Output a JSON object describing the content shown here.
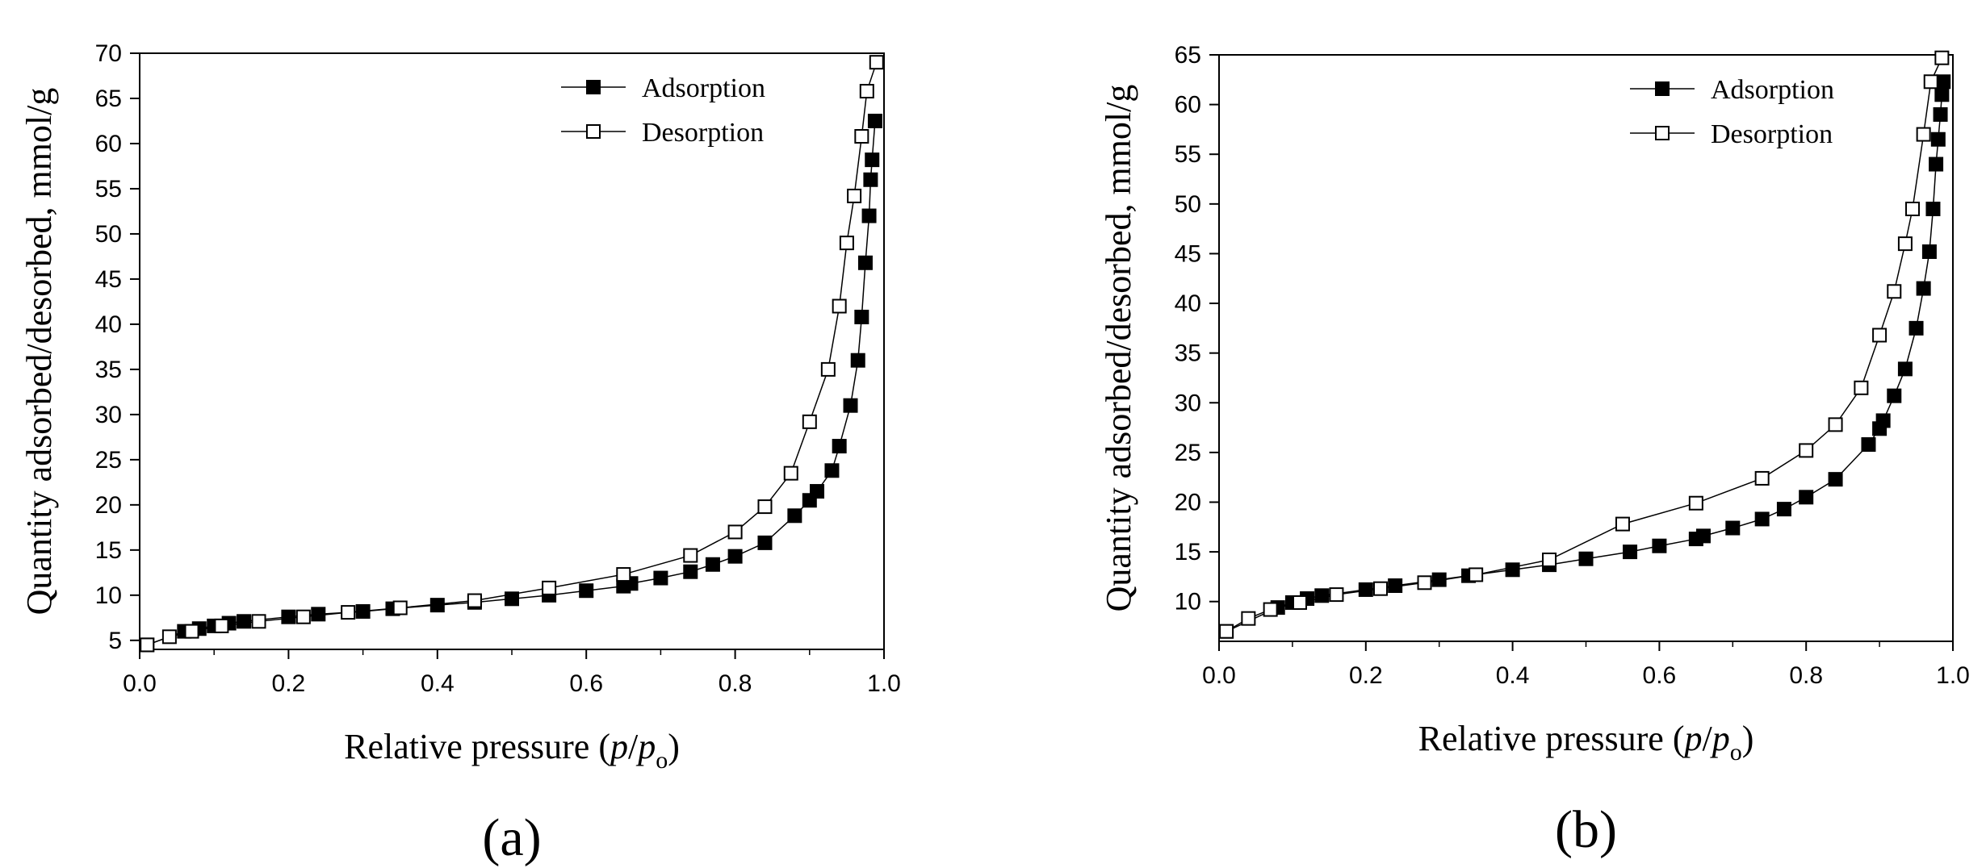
{
  "chart_data": [
    {
      "type": "scatter",
      "panel_label": "(a)",
      "xlabel_main": "Relative pressure (",
      "xlabel_p": "p",
      "xlabel_slash": "/",
      "xlabel_p2": "p",
      "xlabel_sub": "o",
      "xlabel_close": ")",
      "ylabel": "Quantity adsorbed/desorbed, mmol/g",
      "xlim": [
        0.0,
        1.0
      ],
      "ylim": [
        4,
        70
      ],
      "xticks": [
        "0.0",
        "0.2",
        "0.4",
        "0.6",
        "0.8",
        "1.0"
      ],
      "yticks": [
        "5",
        "10",
        "15",
        "20",
        "25",
        "30",
        "35",
        "40",
        "45",
        "50",
        "55",
        "60",
        "65",
        "70"
      ],
      "legend_position": "top-right",
      "series": [
        {
          "name": "Adsorption",
          "marker": "filled-square",
          "points": [
            [
              0.01,
              4.5
            ],
            [
              0.06,
              6.0
            ],
            [
              0.08,
              6.3
            ],
            [
              0.1,
              6.6
            ],
            [
              0.12,
              6.9
            ],
            [
              0.14,
              7.1
            ],
            [
              0.2,
              7.6
            ],
            [
              0.24,
              7.9
            ],
            [
              0.3,
              8.2
            ],
            [
              0.34,
              8.5
            ],
            [
              0.4,
              8.9
            ],
            [
              0.45,
              9.2
            ],
            [
              0.5,
              9.6
            ],
            [
              0.55,
              10.0
            ],
            [
              0.6,
              10.5
            ],
            [
              0.65,
              11.0
            ],
            [
              0.66,
              11.3
            ],
            [
              0.7,
              11.9
            ],
            [
              0.74,
              12.6
            ],
            [
              0.77,
              13.4
            ],
            [
              0.8,
              14.3
            ],
            [
              0.84,
              15.8
            ],
            [
              0.88,
              18.8
            ],
            [
              0.9,
              20.5
            ],
            [
              0.91,
              21.5
            ],
            [
              0.93,
              23.8
            ],
            [
              0.94,
              26.5
            ],
            [
              0.955,
              31.0
            ],
            [
              0.965,
              36.0
            ],
            [
              0.97,
              40.8
            ],
            [
              0.975,
              46.8
            ],
            [
              0.98,
              52.0
            ],
            [
              0.982,
              56.0
            ],
            [
              0.984,
              58.2
            ],
            [
              0.988,
              62.5
            ]
          ]
        },
        {
          "name": "Desorption",
          "marker": "open-square",
          "points": [
            [
              0.01,
              4.5
            ],
            [
              0.04,
              5.4
            ],
            [
              0.07,
              6.0
            ],
            [
              0.11,
              6.6
            ],
            [
              0.16,
              7.1
            ],
            [
              0.22,
              7.6
            ],
            [
              0.28,
              8.1
            ],
            [
              0.35,
              8.6
            ],
            [
              0.45,
              9.4
            ],
            [
              0.55,
              10.8
            ],
            [
              0.65,
              12.3
            ],
            [
              0.74,
              14.4
            ],
            [
              0.8,
              17.0
            ],
            [
              0.84,
              19.8
            ],
            [
              0.875,
              23.5
            ],
            [
              0.9,
              29.2
            ],
            [
              0.925,
              35.0
            ],
            [
              0.94,
              42.0
            ],
            [
              0.95,
              49.0
            ],
            [
              0.96,
              54.2
            ],
            [
              0.97,
              60.8
            ],
            [
              0.977,
              65.8
            ],
            [
              0.99,
              69.0
            ]
          ]
        }
      ]
    },
    {
      "type": "scatter",
      "panel_label": "(b)",
      "xlabel_main": "Relative pressure (",
      "xlabel_p": "p",
      "xlabel_slash": "/",
      "xlabel_p2": "p",
      "xlabel_sub": "o",
      "xlabel_close": ")",
      "ylabel": "Quantity adsorbed/desorbed, mmol/g",
      "xlim": [
        0.0,
        1.0
      ],
      "ylim": [
        6,
        65
      ],
      "xticks": [
        "0.0",
        "0.2",
        "0.4",
        "0.6",
        "0.8",
        "1.0"
      ],
      "yticks": [
        "10",
        "15",
        "20",
        "25",
        "30",
        "35",
        "40",
        "45",
        "50",
        "55",
        "60",
        "65"
      ],
      "legend_position": "top-right",
      "series": [
        {
          "name": "Adsorption",
          "marker": "filled-square",
          "points": [
            [
              0.01,
              7.0
            ],
            [
              0.08,
              9.4
            ],
            [
              0.1,
              9.9
            ],
            [
              0.12,
              10.3
            ],
            [
              0.14,
              10.6
            ],
            [
              0.2,
              11.2
            ],
            [
              0.24,
              11.6
            ],
            [
              0.3,
              12.2
            ],
            [
              0.34,
              12.6
            ],
            [
              0.4,
              13.2
            ],
            [
              0.45,
              13.7
            ],
            [
              0.5,
              14.3
            ],
            [
              0.56,
              15.0
            ],
            [
              0.6,
              15.6
            ],
            [
              0.65,
              16.3
            ],
            [
              0.66,
              16.6
            ],
            [
              0.7,
              17.4
            ],
            [
              0.74,
              18.3
            ],
            [
              0.77,
              19.3
            ],
            [
              0.8,
              20.5
            ],
            [
              0.84,
              22.3
            ],
            [
              0.885,
              25.8
            ],
            [
              0.9,
              27.4
            ],
            [
              0.905,
              28.2
            ],
            [
              0.92,
              30.7
            ],
            [
              0.935,
              33.4
            ],
            [
              0.95,
              37.5
            ],
            [
              0.96,
              41.5
            ],
            [
              0.968,
              45.2
            ],
            [
              0.973,
              49.5
            ],
            [
              0.977,
              54.0
            ],
            [
              0.98,
              56.5
            ],
            [
              0.983,
              59.0
            ],
            [
              0.985,
              61.0
            ],
            [
              0.987,
              62.3
            ]
          ]
        },
        {
          "name": "Desorption",
          "marker": "open-square",
          "points": [
            [
              0.01,
              7.0
            ],
            [
              0.04,
              8.3
            ],
            [
              0.07,
              9.2
            ],
            [
              0.11,
              9.9
            ],
            [
              0.16,
              10.7
            ],
            [
              0.22,
              11.3
            ],
            [
              0.28,
              11.9
            ],
            [
              0.35,
              12.7
            ],
            [
              0.45,
              14.2
            ],
            [
              0.55,
              17.8
            ],
            [
              0.65,
              19.9
            ],
            [
              0.74,
              22.4
            ],
            [
              0.8,
              25.2
            ],
            [
              0.84,
              27.8
            ],
            [
              0.875,
              31.5
            ],
            [
              0.9,
              36.8
            ],
            [
              0.92,
              41.2
            ],
            [
              0.935,
              46.0
            ],
            [
              0.945,
              49.5
            ],
            [
              0.96,
              57.0
            ],
            [
              0.97,
              62.3
            ],
            [
              0.985,
              64.7
            ]
          ]
        }
      ]
    }
  ]
}
